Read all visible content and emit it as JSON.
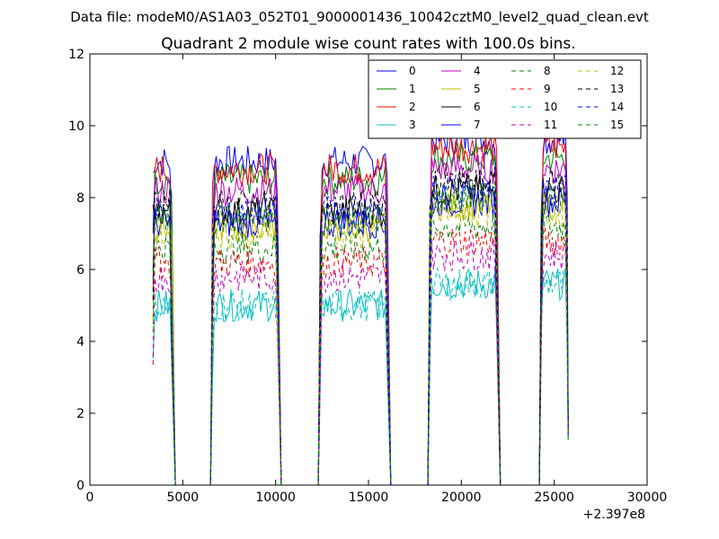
{
  "figure": {
    "suptitle": "Data file: modeM0/AS1A03_052T01_9000001436_10042cztM0_level2_quad_clean.evt"
  },
  "chart_data": {
    "type": "line",
    "title": "Quadrant 2 module wise count rates with 100.0s bins.",
    "xlabel": "",
    "ylabel": "",
    "xlim": [
      0,
      30000
    ],
    "ylim": [
      0,
      12
    ],
    "x_offset_label": "+2.397e8",
    "x_ticks": [
      0,
      5000,
      10000,
      15000,
      20000,
      25000,
      30000
    ],
    "y_ticks": [
      0,
      2,
      4,
      6,
      8,
      10,
      12
    ],
    "grid": false,
    "legend": {
      "placement": "top-right",
      "columns": 4
    },
    "segments": [
      {
        "start": 3400,
        "end": 4400
      },
      {
        "start": 6600,
        "end": 10100
      },
      {
        "start": 12400,
        "end": 16000
      },
      {
        "start": 18300,
        "end": 21900
      },
      {
        "start": 24300,
        "end": 25700
      }
    ],
    "gaps": [
      {
        "start": 4600,
        "end": 6500
      },
      {
        "start": 10300,
        "end": 12300
      },
      {
        "start": 16200,
        "end": 18200
      },
      {
        "start": 22100,
        "end": 24200
      }
    ],
    "series": [
      {
        "name": "0",
        "color": "#0000ff",
        "style": "solid",
        "level": 9.0
      },
      {
        "name": "1",
        "color": "#008000",
        "style": "solid",
        "level": 8.5
      },
      {
        "name": "2",
        "color": "#ff0000",
        "style": "solid",
        "level": 8.8
      },
      {
        "name": "3",
        "color": "#00bfbf",
        "style": "solid",
        "level": 5.0
      },
      {
        "name": "4",
        "color": "#bf00bf",
        "style": "solid",
        "level": 8.2
      },
      {
        "name": "5",
        "color": "#bfbf00",
        "style": "solid",
        "level": 7.2
      },
      {
        "name": "6",
        "color": "#000000",
        "style": "solid",
        "level": 7.6
      },
      {
        "name": "7",
        "color": "#0000ff",
        "style": "solid",
        "level": 7.3
      },
      {
        "name": "8",
        "color": "#008000",
        "style": "dashed",
        "level": 6.6
      },
      {
        "name": "9",
        "color": "#ff0000",
        "style": "dashed",
        "level": 6.2
      },
      {
        "name": "10",
        "color": "#00bfbf",
        "style": "dashed",
        "level": 5.0
      },
      {
        "name": "11",
        "color": "#bf00bf",
        "style": "dashed",
        "level": 5.8
      },
      {
        "name": "12",
        "color": "#bfbf00",
        "style": "dashed",
        "level": 7.0
      },
      {
        "name": "13",
        "color": "#000000",
        "style": "dashed",
        "level": 7.8
      },
      {
        "name": "14",
        "color": "#0000ff",
        "style": "dashed",
        "level": 7.6
      },
      {
        "name": "15",
        "color": "#008000",
        "style": "dashed",
        "level": 7.4
      }
    ]
  }
}
